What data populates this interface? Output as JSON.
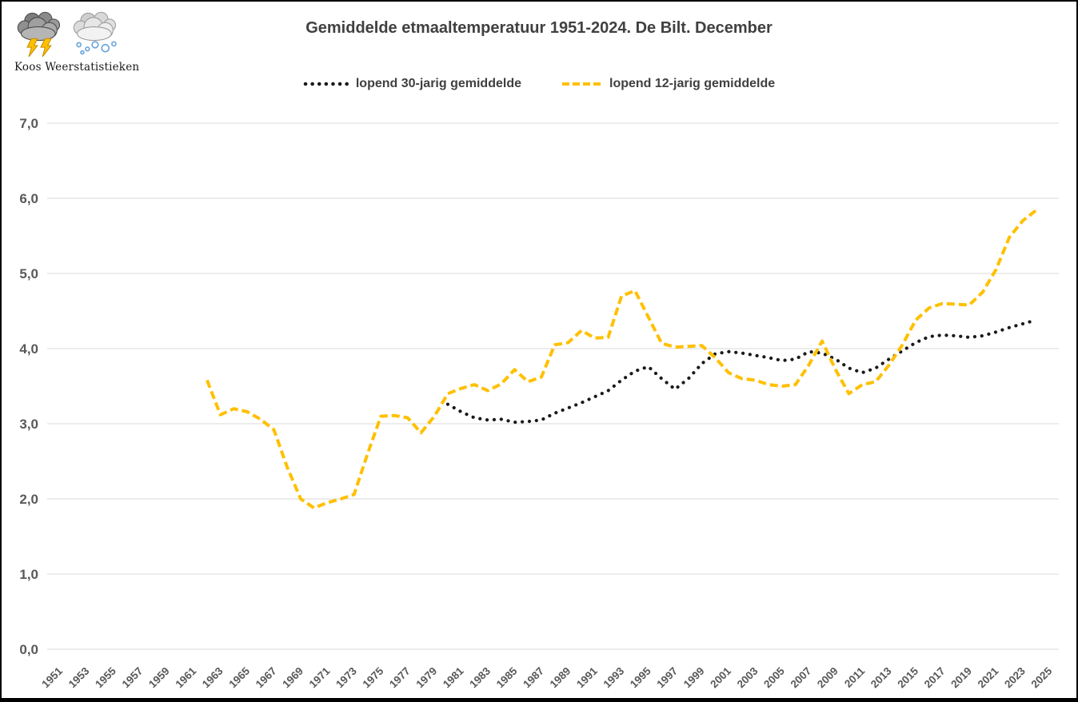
{
  "branding": {
    "name": "Koos Weerstatistieken"
  },
  "title": "Gemiddelde etmaaltemperatuur 1951-2024. De Bilt. December",
  "legend": {
    "series30": "lopend 30-jarig gemiddelde",
    "series12": "lopend 12-jarig gemiddelde"
  },
  "colors": {
    "series30": "#1a1a1a",
    "series12": "#FFC000",
    "gridline": "#d9d9d9",
    "axis_text": "#595959",
    "title_text": "#404040"
  },
  "chart_data": {
    "type": "line",
    "title": "Gemiddelde etmaaltemperatuur 1951-2024. De Bilt. December",
    "xlabel": "",
    "ylabel": "",
    "ylim": [
      0.0,
      7.0
    ],
    "grid": true,
    "legend_position": "top",
    "y_ticks": [
      {
        "label": "7,0",
        "value": 7.0
      },
      {
        "label": "6,0",
        "value": 6.0
      },
      {
        "label": "5,0",
        "value": 5.0
      },
      {
        "label": "4,0",
        "value": 4.0
      },
      {
        "label": "3,0",
        "value": 3.0
      },
      {
        "label": "2,0",
        "value": 2.0
      },
      {
        "label": "1,0",
        "value": 1.0
      },
      {
        "label": "0,0",
        "value": 0.0
      }
    ],
    "x_tick_years": [
      1951,
      1953,
      1955,
      1957,
      1959,
      1961,
      1963,
      1965,
      1967,
      1969,
      1971,
      1973,
      1975,
      1977,
      1979,
      1981,
      1983,
      1985,
      1987,
      1989,
      1991,
      1993,
      1995,
      1997,
      1999,
      2001,
      2003,
      2005,
      2007,
      2009,
      2011,
      2013,
      2015,
      2017,
      2019,
      2021,
      2023,
      2025
    ],
    "x_axis_range": [
      1951,
      2026
    ],
    "series": [
      {
        "name": "lopend 30-jarig gemiddelde",
        "color": "#1a1a1a",
        "style": "dotted",
        "start_year": 1980,
        "x": [
          1980,
          1981,
          1982,
          1983,
          1984,
          1985,
          1986,
          1987,
          1988,
          1989,
          1990,
          1991,
          1992,
          1993,
          1994,
          1995,
          1996,
          1997,
          1998,
          1999,
          2000,
          2001,
          2002,
          2003,
          2004,
          2005,
          2006,
          2007,
          2008,
          2009,
          2010,
          2011,
          2012,
          2013,
          2014,
          2015,
          2016,
          2017,
          2018,
          2019,
          2020,
          2021,
          2022,
          2023,
          2024
        ],
        "values": [
          3.26,
          3.16,
          3.08,
          3.05,
          3.06,
          3.02,
          3.03,
          3.05,
          3.14,
          3.21,
          3.28,
          3.36,
          3.44,
          3.58,
          3.7,
          3.76,
          3.6,
          3.46,
          3.6,
          3.8,
          3.93,
          3.96,
          3.94,
          3.91,
          3.88,
          3.84,
          3.86,
          3.96,
          3.94,
          3.86,
          3.74,
          3.68,
          3.74,
          3.86,
          3.97,
          4.08,
          4.16,
          4.18,
          4.17,
          4.15,
          4.17,
          4.22,
          4.28,
          4.33,
          4.38
        ]
      },
      {
        "name": "lopend 12-jarig gemiddelde",
        "color": "#FFC000",
        "style": "dashed",
        "start_year": 1962,
        "x": [
          1962,
          1963,
          1964,
          1965,
          1966,
          1967,
          1968,
          1969,
          1970,
          1971,
          1972,
          1973,
          1974,
          1975,
          1976,
          1977,
          1978,
          1979,
          1980,
          1981,
          1982,
          1983,
          1984,
          1985,
          1986,
          1987,
          1988,
          1989,
          1990,
          1991,
          1992,
          1993,
          1994,
          1995,
          1996,
          1997,
          1998,
          1999,
          2000,
          2001,
          2002,
          2003,
          2004,
          2005,
          2006,
          2007,
          2008,
          2009,
          2010,
          2011,
          2012,
          2013,
          2014,
          2015,
          2016,
          2017,
          2018,
          2019,
          2020,
          2021,
          2022,
          2023,
          2024
        ],
        "values": [
          3.58,
          3.12,
          3.2,
          3.16,
          3.06,
          2.92,
          2.42,
          2.0,
          1.88,
          1.95,
          2.0,
          2.06,
          2.6,
          3.1,
          3.11,
          3.08,
          2.88,
          3.1,
          3.4,
          3.47,
          3.52,
          3.44,
          3.53,
          3.72,
          3.56,
          3.62,
          4.05,
          4.08,
          4.24,
          4.14,
          4.15,
          4.7,
          4.77,
          4.42,
          4.07,
          4.02,
          4.03,
          4.04,
          3.88,
          3.68,
          3.6,
          3.58,
          3.52,
          3.5,
          3.52,
          3.78,
          4.1,
          3.72,
          3.4,
          3.52,
          3.56,
          3.78,
          4.05,
          4.38,
          4.54,
          4.6,
          4.59,
          4.58,
          4.75,
          5.05,
          5.48,
          5.7,
          5.84
        ]
      }
    ]
  }
}
